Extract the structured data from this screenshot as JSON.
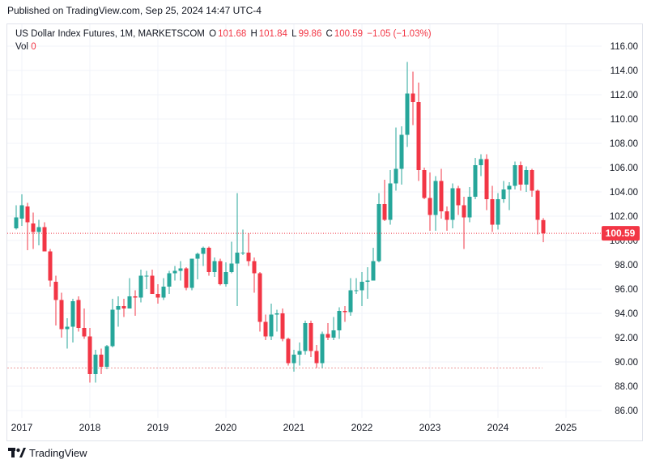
{
  "header": {
    "published": "Published on TradingView.com, Sep 25, 2024 14:47 UTC-4"
  },
  "legend": {
    "symbol": "US Dollar Index Futures, 1M, MARKETSCOM",
    "o_label": "O",
    "o_value": "101.68",
    "h_label": "H",
    "h_value": "101.84",
    "l_label": "L",
    "l_value": "99.86",
    "c_label": "C",
    "c_value": "100.59",
    "change": "−1.05 (−1.03%)",
    "vol_label": "Vol",
    "vol_value": "0"
  },
  "price_tag": "100.59",
  "brand": {
    "name": "TradingView",
    "logo": "tradingview-logo"
  },
  "colors": {
    "up": "#26a69a",
    "down": "#f23645",
    "grid": "#f0f3fa",
    "price_line": "#f23645",
    "tag_bg": "#f23645"
  },
  "chart_data": {
    "type": "candlestick",
    "title": "US Dollar Index Futures, 1M, MARKETSCOM",
    "ylim": [
      85,
      117
    ],
    "y_ticks": [
      "86.00",
      "88.00",
      "90.00",
      "92.00",
      "94.00",
      "96.00",
      "98.00",
      "100.00",
      "102.00",
      "104.00",
      "106.00",
      "108.00",
      "110.00",
      "112.00",
      "114.00",
      "116.00"
    ],
    "x_ticks": [
      "2017",
      "2018",
      "2019",
      "2020",
      "2021",
      "2022",
      "2023",
      "2024",
      "2025"
    ],
    "last_price": 100.59,
    "candles": [
      [
        "2016-12",
        101.0,
        102.9,
        100.9,
        101.9
      ],
      [
        "2017-01",
        101.8,
        103.8,
        101.2,
        102.9
      ],
      [
        "2017-02",
        102.8,
        103.1,
        99.2,
        101.5
      ],
      [
        "2017-03",
        101.4,
        102.3,
        99.3,
        100.7
      ],
      [
        "2017-04",
        100.7,
        101.7,
        99.6,
        101.1
      ],
      [
        "2017-05",
        101.1,
        101.5,
        99.1,
        99.1
      ],
      [
        "2017-06",
        99.1,
        99.3,
        96.2,
        96.7
      ],
      [
        "2017-07",
        96.6,
        97.1,
        93.0,
        95.1
      ],
      [
        "2017-08",
        95.1,
        95.7,
        92.0,
        92.7
      ],
      [
        "2017-09",
        92.7,
        93.6,
        91.1,
        92.9
      ],
      [
        "2017-10",
        92.9,
        95.2,
        91.6,
        95.0
      ],
      [
        "2017-11",
        95.1,
        95.4,
        92.5,
        92.8
      ],
      [
        "2017-12",
        92.8,
        94.4,
        91.9,
        92.1
      ],
      [
        "2018-01",
        92.1,
        92.8,
        88.3,
        89.0
      ],
      [
        "2018-02",
        89.0,
        91.0,
        88.3,
        90.6
      ],
      [
        "2018-03",
        90.6,
        91.1,
        89.0,
        89.6
      ],
      [
        "2018-04",
        89.6,
        91.4,
        89.4,
        91.3
      ],
      [
        "2018-05",
        91.3,
        95.2,
        91.2,
        94.3
      ],
      [
        "2018-06",
        94.3,
        95.4,
        92.9,
        94.6
      ],
      [
        "2018-07",
        94.6,
        95.2,
        93.7,
        94.4
      ],
      [
        "2018-08",
        94.4,
        96.9,
        94.4,
        95.4
      ],
      [
        "2018-09",
        95.4,
        95.9,
        93.8,
        95.3
      ],
      [
        "2018-10",
        95.3,
        97.6,
        94.9,
        97.1
      ],
      [
        "2018-11",
        97.1,
        97.5,
        96.0,
        97.1
      ],
      [
        "2018-12",
        97.1,
        97.6,
        95.8,
        95.6
      ],
      [
        "2019-01",
        95.6,
        96.4,
        94.8,
        95.3
      ],
      [
        "2019-02",
        95.3,
        96.9,
        95.1,
        96.2
      ],
      [
        "2019-03",
        96.2,
        97.5,
        95.6,
        97.3
      ],
      [
        "2019-04",
        97.3,
        97.9,
        96.7,
        97.5
      ],
      [
        "2019-05",
        97.5,
        98.3,
        96.7,
        97.7
      ],
      [
        "2019-06",
        97.7,
        97.8,
        95.9,
        96.1
      ],
      [
        "2019-07",
        96.1,
        98.4,
        95.9,
        98.5
      ],
      [
        "2019-08",
        98.5,
        99.0,
        96.8,
        98.9
      ],
      [
        "2019-09",
        98.9,
        99.5,
        97.9,
        99.4
      ],
      [
        "2019-10",
        99.4,
        99.5,
        97.1,
        97.4
      ],
      [
        "2019-11",
        97.4,
        98.6,
        97.0,
        98.3
      ],
      [
        "2019-12",
        98.3,
        98.5,
        96.3,
        96.4
      ],
      [
        "2020-01",
        96.4,
        98.2,
        96.2,
        97.4
      ],
      [
        "2020-02",
        97.4,
        99.9,
        97.3,
        98.1
      ],
      [
        "2020-03",
        98.1,
        103.9,
        94.6,
        99.0
      ],
      [
        "2020-04",
        99.0,
        100.9,
        98.8,
        99.0
      ],
      [
        "2020-05",
        99.0,
        100.6,
        97.9,
        98.3
      ],
      [
        "2020-06",
        98.3,
        98.6,
        95.7,
        97.3
      ],
      [
        "2020-07",
        97.3,
        97.4,
        92.5,
        93.3
      ],
      [
        "2020-08",
        93.3,
        93.9,
        91.8,
        92.1
      ],
      [
        "2020-09",
        92.1,
        94.8,
        91.8,
        93.9
      ],
      [
        "2020-10",
        93.9,
        94.3,
        92.5,
        94.0
      ],
      [
        "2020-11",
        94.0,
        94.4,
        91.7,
        91.9
      ],
      [
        "2020-12",
        91.9,
        92.0,
        89.7,
        89.9
      ],
      [
        "2021-01",
        89.9,
        91.0,
        89.2,
        90.6
      ],
      [
        "2021-02",
        90.6,
        91.6,
        89.7,
        90.9
      ],
      [
        "2021-03",
        90.9,
        93.4,
        90.6,
        93.2
      ],
      [
        "2021-04",
        93.2,
        93.4,
        90.4,
        90.9
      ],
      [
        "2021-05",
        90.9,
        91.4,
        89.5,
        89.9
      ],
      [
        "2021-06",
        89.9,
        92.5,
        89.5,
        92.3
      ],
      [
        "2021-07",
        92.3,
        93.2,
        91.8,
        92.0
      ],
      [
        "2021-08",
        92.0,
        93.7,
        91.8,
        92.6
      ],
      [
        "2021-09",
        92.6,
        94.5,
        91.9,
        94.2
      ],
      [
        "2021-10",
        94.2,
        94.6,
        93.3,
        94.1
      ],
      [
        "2021-11",
        94.1,
        96.9,
        93.8,
        95.9
      ],
      [
        "2021-12",
        95.9,
        96.9,
        95.6,
        95.9
      ],
      [
        "2022-01",
        95.9,
        97.4,
        94.6,
        96.6
      ],
      [
        "2022-02",
        96.6,
        97.8,
        95.2,
        96.7
      ],
      [
        "2022-03",
        96.7,
        99.4,
        96.7,
        98.3
      ],
      [
        "2022-04",
        98.3,
        103.9,
        98.2,
        103.0
      ],
      [
        "2022-05",
        103.0,
        105.0,
        101.6,
        101.7
      ],
      [
        "2022-06",
        101.7,
        105.8,
        101.3,
        104.7
      ],
      [
        "2022-07",
        104.7,
        109.3,
        104.1,
        105.9
      ],
      [
        "2022-08",
        105.9,
        109.4,
        104.6,
        108.7
      ],
      [
        "2022-09",
        108.7,
        114.7,
        107.7,
        112.1
      ],
      [
        "2022-10",
        112.1,
        113.9,
        109.5,
        111.4
      ],
      [
        "2022-11",
        111.4,
        113.0,
        104.9,
        105.8
      ],
      [
        "2022-12",
        105.8,
        106.0,
        103.4,
        103.5
      ],
      [
        "2023-01",
        103.5,
        105.6,
        100.8,
        102.1
      ],
      [
        "2023-02",
        102.1,
        105.3,
        100.8,
        104.9
      ],
      [
        "2023-03",
        104.9,
        105.9,
        101.8,
        102.4
      ],
      [
        "2023-04",
        102.4,
        102.8,
        100.8,
        101.7
      ],
      [
        "2023-05",
        101.7,
        104.7,
        101.0,
        104.3
      ],
      [
        "2023-06",
        104.3,
        104.5,
        102.1,
        102.9
      ],
      [
        "2023-07",
        102.9,
        103.6,
        99.3,
        101.9
      ],
      [
        "2023-08",
        101.9,
        104.4,
        101.5,
        103.6
      ],
      [
        "2023-09",
        103.6,
        106.8,
        103.4,
        106.2
      ],
      [
        "2023-10",
        106.2,
        107.1,
        105.3,
        106.7
      ],
      [
        "2023-11",
        106.7,
        107.1,
        102.5,
        103.4
      ],
      [
        "2023-12",
        103.4,
        104.5,
        100.7,
        101.3
      ],
      [
        "2024-01",
        101.3,
        103.9,
        100.9,
        103.4
      ],
      [
        "2024-02",
        103.4,
        104.9,
        103.1,
        104.2
      ],
      [
        "2024-03",
        104.2,
        104.8,
        102.5,
        104.5
      ],
      [
        "2024-04",
        104.5,
        106.5,
        104.2,
        106.2
      ],
      [
        "2024-05",
        106.2,
        106.5,
        104.1,
        104.6
      ],
      [
        "2024-06",
        104.6,
        106.1,
        104.0,
        105.8
      ],
      [
        "2024-07",
        105.8,
        105.9,
        103.6,
        104.1
      ],
      [
        "2024-08",
        104.1,
        104.2,
        100.5,
        101.7
      ],
      [
        "2024-09",
        101.68,
        101.84,
        99.86,
        100.59
      ]
    ],
    "reference_line": 89.5
  }
}
